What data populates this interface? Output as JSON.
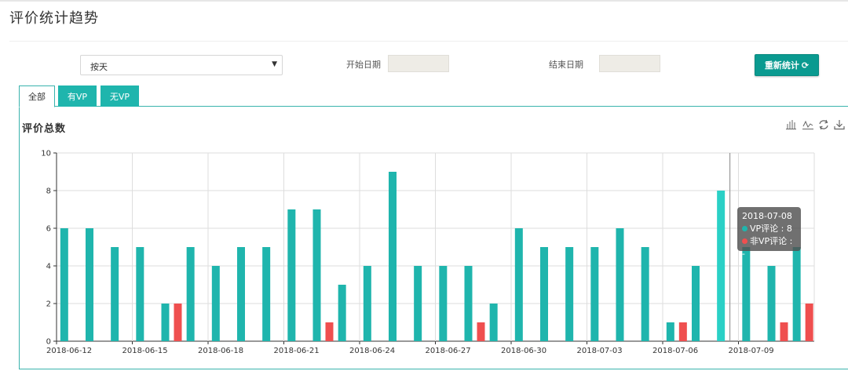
{
  "page": {
    "title": "评价统计趋势"
  },
  "filters": {
    "mode_select_value": "按天",
    "start_label": "开始日期",
    "end_label": "结束日期",
    "start_value": "",
    "end_value": "",
    "recalc_label": "重新统计",
    "recalc_icon": "refresh-icon"
  },
  "tabs": [
    {
      "label": "全部",
      "active": true
    },
    {
      "label": "有VP",
      "active": false
    },
    {
      "label": "无VP",
      "active": false
    }
  ],
  "chart_title": "评价总数",
  "toolbox": [
    "bar-chart-icon",
    "line-chart-icon",
    "restore-icon",
    "download-icon"
  ],
  "tooltip": {
    "date": "2018-07-08",
    "vp_label": "VP评论",
    "vp_value": "8",
    "non_vp_label": "非VP评论",
    "non_vp_value": "-"
  },
  "colors": {
    "vp": "#1fb5ad",
    "non_vp": "#ef4f4f",
    "vp_highlight": "#2ad0c6",
    "accent": "#0a9a90"
  },
  "chart_data": {
    "type": "bar",
    "ylim": [
      0,
      10
    ],
    "yticks": [
      0,
      2,
      4,
      6,
      8,
      10
    ],
    "grid": true,
    "categories": [
      "2018-06-12",
      "2018-06-13",
      "2018-06-14",
      "2018-06-15",
      "2018-06-16",
      "2018-06-17",
      "2018-06-18",
      "2018-06-19",
      "2018-06-20",
      "2018-06-21",
      "2018-06-22",
      "2018-06-23",
      "2018-06-24",
      "2018-06-25",
      "2018-06-26",
      "2018-06-27",
      "2018-06-28",
      "2018-06-29",
      "2018-06-30",
      "2018-07-01",
      "2018-07-02",
      "2018-07-03",
      "2018-07-04",
      "2018-07-05",
      "2018-07-06",
      "2018-07-07",
      "2018-07-08",
      "2018-07-09",
      "2018-07-10",
      "2018-07-11"
    ],
    "xtick_labels": [
      "2018-06-12",
      "2018-06-15",
      "2018-06-18",
      "2018-06-21",
      "2018-06-24",
      "2018-06-27",
      "2018-06-30",
      "2018-07-03",
      "2018-07-06",
      "2018-07-09"
    ],
    "highlight_category": "2018-07-08",
    "series": [
      {
        "name": "VP评论",
        "values": [
          6,
          6,
          5,
          5,
          2,
          5,
          4,
          5,
          5,
          7,
          7,
          3,
          4,
          9,
          4,
          4,
          4,
          2,
          6,
          5,
          5,
          5,
          6,
          5,
          1,
          4,
          8,
          5,
          4,
          5
        ]
      },
      {
        "name": "非VP评论",
        "values": [
          0,
          0,
          0,
          0,
          2,
          0,
          0,
          0,
          0,
          0,
          1,
          0,
          0,
          0,
          0,
          0,
          1,
          0,
          0,
          0,
          0,
          0,
          0,
          0,
          1,
          0,
          0,
          0,
          1,
          2
        ]
      }
    ]
  }
}
